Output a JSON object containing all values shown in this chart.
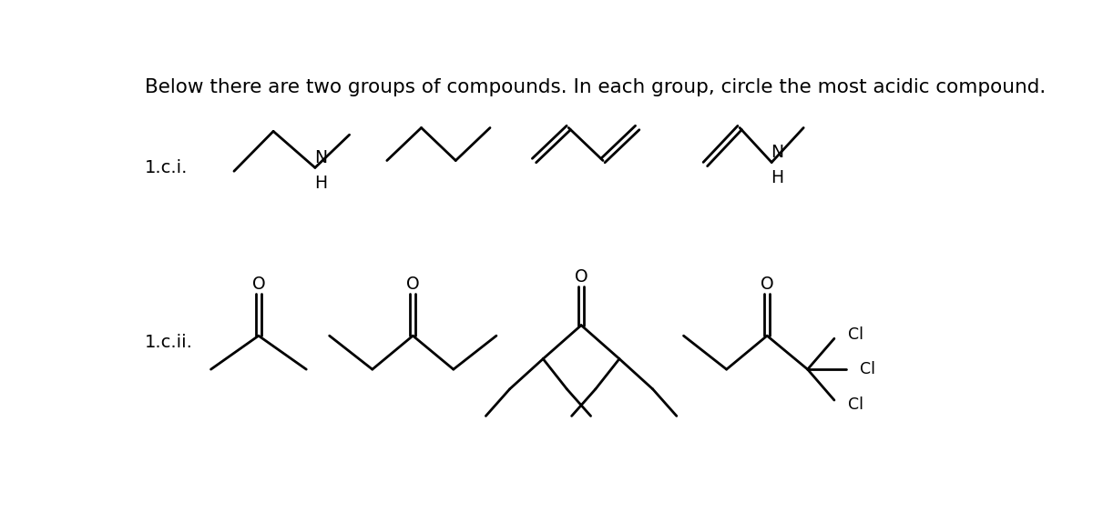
{
  "title": "Below there are two groups of compounds. In each group, circle the most acidic compound.",
  "title_fontsize": 15.5,
  "label_1ci": "1.c.i.",
  "label_1cii": "1.c.ii.",
  "bg_color": "#ffffff",
  "line_color": "#000000",
  "text_color": "#000000",
  "line_width": 2.0,
  "font_size_label": 14,
  "font_size_atom": 13.5
}
